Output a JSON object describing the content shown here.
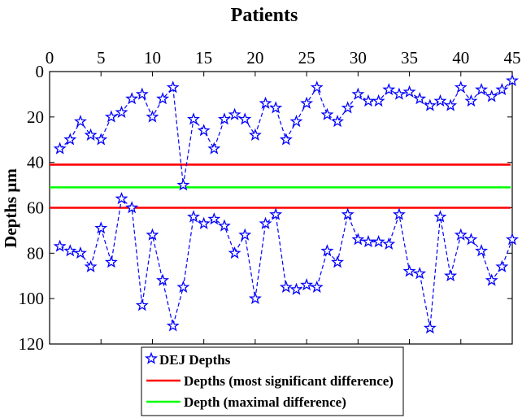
{
  "chart_data": {
    "type": "line",
    "title": "Patients",
    "xlabel": "",
    "ylabel": "Depths μm",
    "xlim": [
      0,
      45
    ],
    "ylim": [
      0,
      120
    ],
    "y_axis_inverted": true,
    "x_axis_position": "top",
    "x_ticks": [
      0,
      5,
      10,
      15,
      20,
      25,
      30,
      35,
      40,
      45
    ],
    "y_ticks": [
      0,
      20,
      40,
      60,
      80,
      100,
      120
    ],
    "grid": false,
    "legend_position": "bottom-center",
    "x": [
      1,
      2,
      3,
      4,
      5,
      6,
      7,
      8,
      9,
      10,
      11,
      12,
      13,
      14,
      15,
      16,
      17,
      18,
      19,
      20,
      21,
      22,
      23,
      24,
      25,
      26,
      27,
      28,
      29,
      30,
      31,
      32,
      33,
      34,
      35,
      36,
      37,
      38,
      39,
      40,
      41,
      42,
      43,
      44,
      45
    ],
    "series": [
      {
        "name": "DEJ Depths",
        "color": "#0000ff",
        "marker": "star",
        "line_style": "dashed",
        "values": [
          34,
          30,
          22,
          28,
          30,
          20,
          18,
          12,
          10,
          20,
          12,
          7,
          50,
          21,
          26,
          34,
          21,
          19,
          21,
          28,
          14,
          16,
          30,
          22,
          14,
          7,
          19,
          22,
          16,
          10,
          13,
          13,
          8,
          10,
          9,
          12,
          15,
          13,
          15,
          7,
          13,
          8,
          11,
          8,
          4
        ]
      },
      {
        "name": "",
        "color": "#0000ff",
        "marker": "star",
        "line_style": "dashed",
        "values": [
          77,
          79,
          80,
          86,
          69,
          84,
          56,
          60,
          103,
          72,
          92,
          112,
          95,
          64,
          67,
          65,
          68,
          80,
          72,
          100,
          67,
          63,
          95,
          96,
          94,
          95,
          79,
          84,
          63,
          74,
          75,
          75,
          76,
          63,
          88,
          89,
          113,
          64,
          90,
          72,
          74,
          79,
          92,
          86,
          74
        ]
      }
    ],
    "hlines": [
      {
        "name": "Depths (most significant difference)",
        "y": 41,
        "color": "#ff0000"
      },
      {
        "name": "Depth (maximal difference)",
        "y": 51,
        "color": "#00ff00"
      },
      {
        "name": "Depths (most significant difference)",
        "y": 60,
        "color": "#ff0000"
      }
    ],
    "legend": [
      {
        "label": "DEJ Depths",
        "kind": "star",
        "color": "#0000ff"
      },
      {
        "label": "Depths (most significant difference)",
        "kind": "line",
        "color": "#ff0000"
      },
      {
        "label": "Depth (maximal difference)",
        "kind": "line",
        "color": "#00ff00"
      }
    ]
  }
}
